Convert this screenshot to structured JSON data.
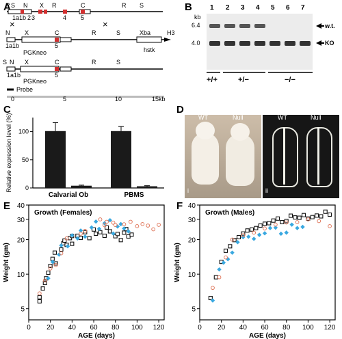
{
  "panels": {
    "A": {
      "letter": "A",
      "row1_sites": [
        "R",
        "S",
        "N",
        "X",
        "R",
        "C",
        "R",
        "S"
      ],
      "row1_exons": [
        "1a1b",
        "2",
        "3",
        "4",
        "5"
      ],
      "row2_sites": [
        "N",
        "X",
        "C",
        "R",
        "S",
        "Xba",
        "H3"
      ],
      "row2_exons": [
        "1a1b",
        "5"
      ],
      "row2_cassettes": [
        "PGKneo",
        "hstk"
      ],
      "row3_sites": [
        "S",
        "N",
        "X",
        "C",
        "R",
        "S"
      ],
      "row3_exons": [
        "1a1b",
        "5"
      ],
      "row3_cassette": "PGKneo",
      "probe_label": "Probe",
      "scale_ticks": [
        "0",
        "5",
        "10",
        "15kb"
      ]
    },
    "B": {
      "letter": "B",
      "kb_label": "kb",
      "size_markers": [
        "6.4",
        "4.0"
      ],
      "lane_numbers": [
        "1",
        "2",
        "3",
        "4",
        "5",
        "6",
        "7"
      ],
      "band_labels": [
        "w.t.",
        "KO"
      ],
      "genotypes": [
        "+/+",
        "+/−",
        "−/−"
      ]
    },
    "C": {
      "letter": "C",
      "chart_data": {
        "type": "bar",
        "categories": [
          "Calvarial Ob",
          "PBMS"
        ],
        "series": [
          {
            "values": [
              101,
              101
            ],
            "errors": [
              15,
              8
            ],
            "color": "#1a1a1a"
          },
          {
            "values": [
              4,
              3
            ],
            "errors": [
              1,
              1
            ],
            "color": "#1a1a1a"
          }
        ],
        "ylabel": "Relative expression level (%)",
        "yticks": [
          0,
          50,
          100
        ],
        "ylim": [
          0,
          125
        ]
      }
    },
    "D": {
      "letter": "D",
      "photo_left_labels": [
        "WT",
        "Null"
      ],
      "photo_right_labels": [
        "WT",
        "Null"
      ],
      "sub_i": "i",
      "sub_ii": "ii"
    },
    "E": {
      "letter": "E",
      "chart_data": {
        "type": "scatter",
        "title": "Growth (Females)",
        "xlabel": "AGE (days)",
        "ylabel": "Weight (gm)",
        "xlim": [
          0,
          125
        ],
        "ylim": [
          4,
          40
        ],
        "yscale": "log",
        "xticks": [
          0,
          20,
          40,
          60,
          80,
          100,
          120
        ],
        "yticks": [
          5,
          10,
          20,
          30,
          40
        ],
        "series": [
          {
            "marker": "open-square",
            "color": "#111111",
            "points": [
              [
                10,
                5.8
              ],
              [
                10,
                6.3
              ],
              [
                13,
                7.5
              ],
              [
                15,
                8.4
              ],
              [
                16,
                9.2
              ],
              [
                18,
                10.3
              ],
              [
                20,
                11.8
              ],
              [
                22,
                13.6
              ],
              [
                24,
                15.4
              ],
              [
                25,
                12.4
              ],
              [
                30,
                16.4
              ],
              [
                32,
                18.6
              ],
              [
                33,
                19.6
              ],
              [
                35,
                18
              ],
              [
                38,
                20.6
              ],
              [
                40,
                18.4
              ],
              [
                40,
                21.5
              ],
              [
                45,
                21.6
              ],
              [
                48,
                20.7
              ],
              [
                52,
                23.2
              ],
              [
                56,
                20.6
              ],
              [
                60,
                24.5
              ],
              [
                62,
                22.5
              ],
              [
                66,
                23.2
              ],
              [
                70,
                21.6
              ],
              [
                72,
                25.5
              ],
              [
                75,
                23.6
              ],
              [
                80,
                21.4
              ],
              [
                82,
                22.4
              ],
              [
                85,
                19.8
              ],
              [
                88,
                23
              ],
              [
                90,
                24.7
              ],
              [
                92,
                21.3
              ],
              [
                95,
                22.1
              ]
            ]
          },
          {
            "marker": "filled-diamond",
            "color": "#39a8e0",
            "points": [
              [
                18,
                9.2
              ],
              [
                22,
                12.8
              ],
              [
                28,
                14.8
              ],
              [
                30,
                17.8
              ],
              [
                36,
                17.5
              ],
              [
                40,
                21.8
              ],
              [
                45,
                20.5
              ],
              [
                48,
                24
              ],
              [
                52,
                21.2
              ],
              [
                58,
                25.5
              ],
              [
                62,
                28.7
              ],
              [
                65,
                24.8
              ],
              [
                70,
                27.8
              ],
              [
                75,
                29.5
              ],
              [
                78,
                22.6
              ],
              [
                82,
                26
              ],
              [
                85,
                27.3
              ],
              [
                88,
                25
              ],
              [
                92,
                23.6
              ]
            ]
          },
          {
            "marker": "open-circle",
            "color": "#e07a5f",
            "points": [
              [
                10,
                6.8
              ],
              [
                15,
                8.8
              ],
              [
                20,
                11.2
              ],
              [
                25,
                12
              ],
              [
                30,
                15.2
              ],
              [
                35,
                20.5
              ],
              [
                48,
                22.5
              ],
              [
                52,
                23.8
              ],
              [
                66,
                30
              ],
              [
                70,
                26.7
              ],
              [
                72,
                28.6
              ],
              [
                78,
                28.1
              ],
              [
                80,
                26.8
              ],
              [
                88,
                27.2
              ],
              [
                94,
                28.6
              ],
              [
                100,
                26.2
              ],
              [
                105,
                27.3
              ],
              [
                110,
                26.5
              ],
              [
                115,
                24.6
              ],
              [
                120,
                26.9
              ]
            ]
          }
        ]
      }
    },
    "F": {
      "letter": "F",
      "chart_data": {
        "type": "scatter",
        "title": "Growth (Males)",
        "xlabel": "AGE (days)",
        "ylabel": "Weight (gm)",
        "xlim": [
          0,
          125
        ],
        "ylim": [
          4,
          40
        ],
        "yscale": "log",
        "xticks": [
          0,
          20,
          40,
          60,
          80,
          100,
          120
        ],
        "yticks": [
          5,
          10,
          20,
          30,
          40
        ],
        "series": [
          {
            "marker": "open-square",
            "color": "#111111",
            "points": [
              [
                10,
                6.2
              ],
              [
                15,
                9.4
              ],
              [
                20,
                12.8
              ],
              [
                24,
                16
              ],
              [
                28,
                17.5
              ],
              [
                32,
                19.8
              ],
              [
                36,
                21
              ],
              [
                40,
                22.6
              ],
              [
                44,
                24
              ],
              [
                48,
                24.5
              ],
              [
                52,
                25.2
              ],
              [
                56,
                26.5
              ],
              [
                60,
                27.5
              ],
              [
                64,
                27.8
              ],
              [
                68,
                29.3
              ],
              [
                72,
                30.5
              ],
              [
                76,
                28.4
              ],
              [
                80,
                29
              ],
              [
                84,
                32.3
              ],
              [
                88,
                31.2
              ],
              [
                92,
                31
              ],
              [
                96,
                32.7
              ],
              [
                100,
                30.5
              ],
              [
                104,
                31.4
              ],
              [
                108,
                32.4
              ],
              [
                112,
                31.9
              ],
              [
                116,
                35
              ],
              [
                120,
                33
              ]
            ]
          },
          {
            "marker": "filled-diamond",
            "color": "#39a8e0",
            "points": [
              [
                12,
                5.9
              ],
              [
                18,
                11
              ],
              [
                22,
                12.6
              ],
              [
                26,
                13.5
              ],
              [
                30,
                15.4
              ],
              [
                35,
                19
              ],
              [
                40,
                21
              ],
              [
                45,
                21.2
              ],
              [
                50,
                20.3
              ],
              [
                55,
                22
              ],
              [
                60,
                22.7
              ],
              [
                65,
                25.2
              ],
              [
                70,
                25.4
              ],
              [
                75,
                22.5
              ],
              [
                80,
                23
              ],
              [
                85,
                27
              ],
              [
                90,
                25.2
              ],
              [
                95,
                25.8
              ]
            ]
          },
          {
            "marker": "open-circle",
            "color": "#e07a5f",
            "points": [
              [
                12,
                7.6
              ],
              [
                18,
                9.4
              ],
              [
                24,
                14
              ],
              [
                30,
                20
              ],
              [
                40,
                21.8
              ],
              [
                50,
                23
              ],
              [
                60,
                25
              ],
              [
                70,
                27
              ],
              [
                80,
                28.2
              ],
              [
                90,
                28.4
              ],
              [
                100,
                30
              ],
              [
                110,
                29
              ],
              [
                120,
                26.2
              ]
            ]
          }
        ]
      }
    }
  }
}
